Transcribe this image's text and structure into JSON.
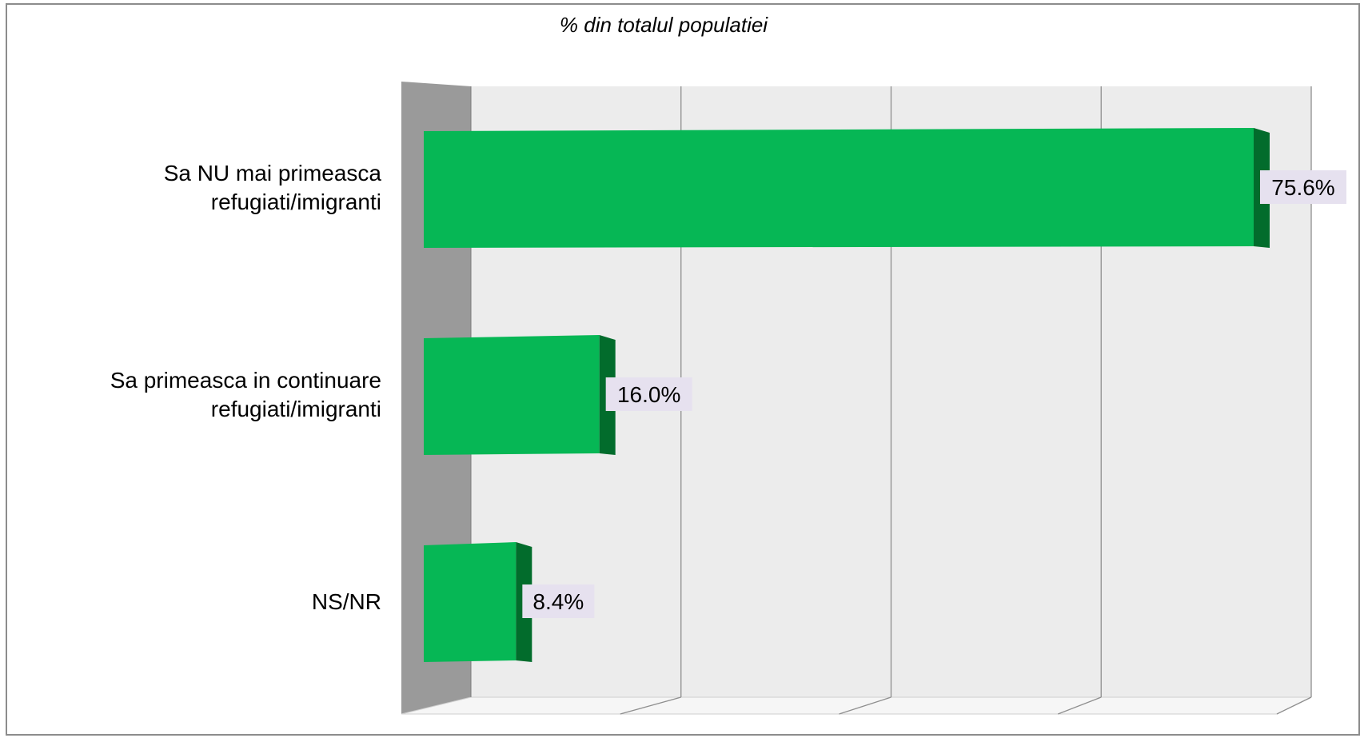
{
  "chart_data": {
    "type": "bar",
    "orientation": "horizontal",
    "title": "% din totalul populatiei",
    "categories": [
      [
        "Sa NU mai primeasca",
        "refugiati/imigranti"
      ],
      [
        "Sa primeasca in continuare",
        "refugiati/imigranti"
      ],
      [
        "NS/NR"
      ]
    ],
    "values": [
      75.6,
      16.0,
      8.4
    ],
    "labels": [
      "75.6%",
      "16.0%",
      "8.4%"
    ],
    "xlim": [
      0,
      80
    ],
    "grid": true,
    "colors": {
      "bar_front": "#06b755",
      "bar_side": "#026c2c",
      "label_bg": "#e6e1ef",
      "wall": "#ececec",
      "left_wall": "#9a9a9a",
      "floor": "#f6f6f6",
      "gridline": "#8e8e8e",
      "frame": "#8c8c8c"
    }
  }
}
